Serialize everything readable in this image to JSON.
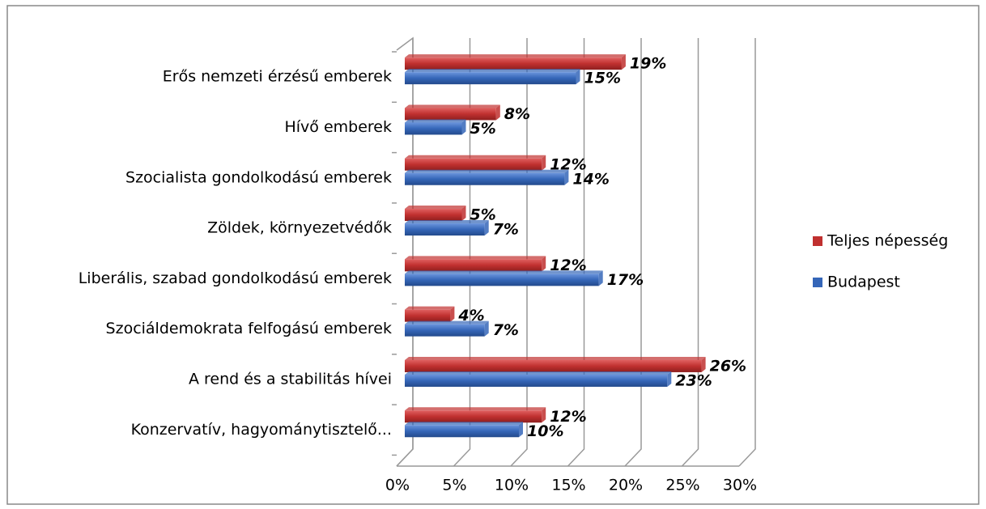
{
  "chart_data": {
    "type": "bar",
    "orientation": "horizontal",
    "categories": [
      "Erős nemzeti érzésű emberek",
      "Hívő emberek",
      "Szocialista gondolkodású emberek",
      "Zöldek, környezetvédők",
      "Liberális, szabad gondolkodású emberek",
      "Szociáldemokrata felfogású emberek",
      "A rend és a stabilitás hívei",
      "Konzervatív, hagyománytisztelő..."
    ],
    "series": [
      {
        "name": "Teljes népesség",
        "color": "#c0302f",
        "values": [
          19,
          8,
          12,
          5,
          12,
          4,
          26,
          12
        ],
        "value_labels": [
          "19%",
          "8%",
          "12%",
          "5%",
          "12%",
          "4%",
          "26%",
          "12%"
        ]
      },
      {
        "name": "Budapest",
        "color": "#3566b8",
        "values": [
          15,
          5,
          14,
          7,
          17,
          7,
          23,
          10
        ],
        "value_labels": [
          "15%",
          "5%",
          "14%",
          "7%",
          "17%",
          "7%",
          "23%",
          "10%"
        ]
      }
    ],
    "xlim": [
      0,
      30
    ],
    "xticks": [
      {
        "value": 0,
        "label": "0%"
      },
      {
        "value": 5,
        "label": "5%"
      },
      {
        "value": 10,
        "label": "10%"
      },
      {
        "value": 15,
        "label": "15%"
      },
      {
        "value": 20,
        "label": "20%"
      },
      {
        "value": 25,
        "label": "25%"
      },
      {
        "value": 30,
        "label": "30%"
      }
    ],
    "grid": true,
    "legend": "right"
  }
}
